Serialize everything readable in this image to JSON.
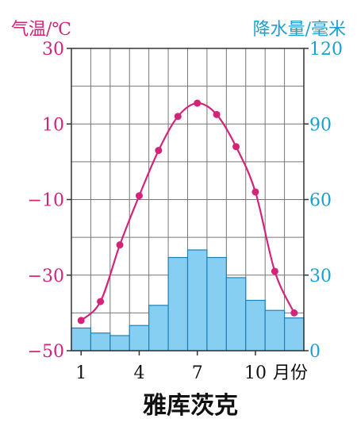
{
  "chart_data": {
    "type": "line+bar",
    "title": "雅库茨克",
    "left_axis": {
      "label": "气温/℃",
      "range": [
        -50,
        30
      ],
      "ticks": [
        30,
        10,
        -10,
        -30,
        -50
      ],
      "tick_labels": [
        "30",
        "10",
        "−10",
        "−30",
        "−50"
      ],
      "color": "#d4247a"
    },
    "right_axis": {
      "label": "降水量/毫米",
      "range": [
        0,
        120
      ],
      "ticks": [
        120,
        90,
        60,
        30,
        0
      ],
      "tick_labels": [
        "120",
        "90",
        "60",
        "30",
        "0"
      ],
      "color": "#1aa0d0"
    },
    "x_axis": {
      "months": [
        1,
        2,
        3,
        4,
        5,
        6,
        7,
        8,
        9,
        10,
        11,
        12
      ],
      "tick_labels": [
        {
          "month": 1,
          "text": "1"
        },
        {
          "month": 4,
          "text": "4"
        },
        {
          "month": 7,
          "text": "7"
        },
        {
          "month": 10,
          "text": "10"
        }
      ],
      "unit": "月份"
    },
    "temperature": [
      -42,
      -37,
      -22,
      -9,
      3,
      12,
      15.5,
      12.5,
      4,
      -8,
      -29,
      -40
    ],
    "precipitation": [
      9,
      7,
      6,
      10,
      18,
      37,
      40,
      37,
      29,
      20,
      16,
      13
    ],
    "grid": true,
    "colors": {
      "bar_fill": "#87cff2",
      "bar_stroke": "#1f7fb8",
      "line": "#d4247a",
      "grid": "#777777",
      "axis": "#333333"
    }
  }
}
